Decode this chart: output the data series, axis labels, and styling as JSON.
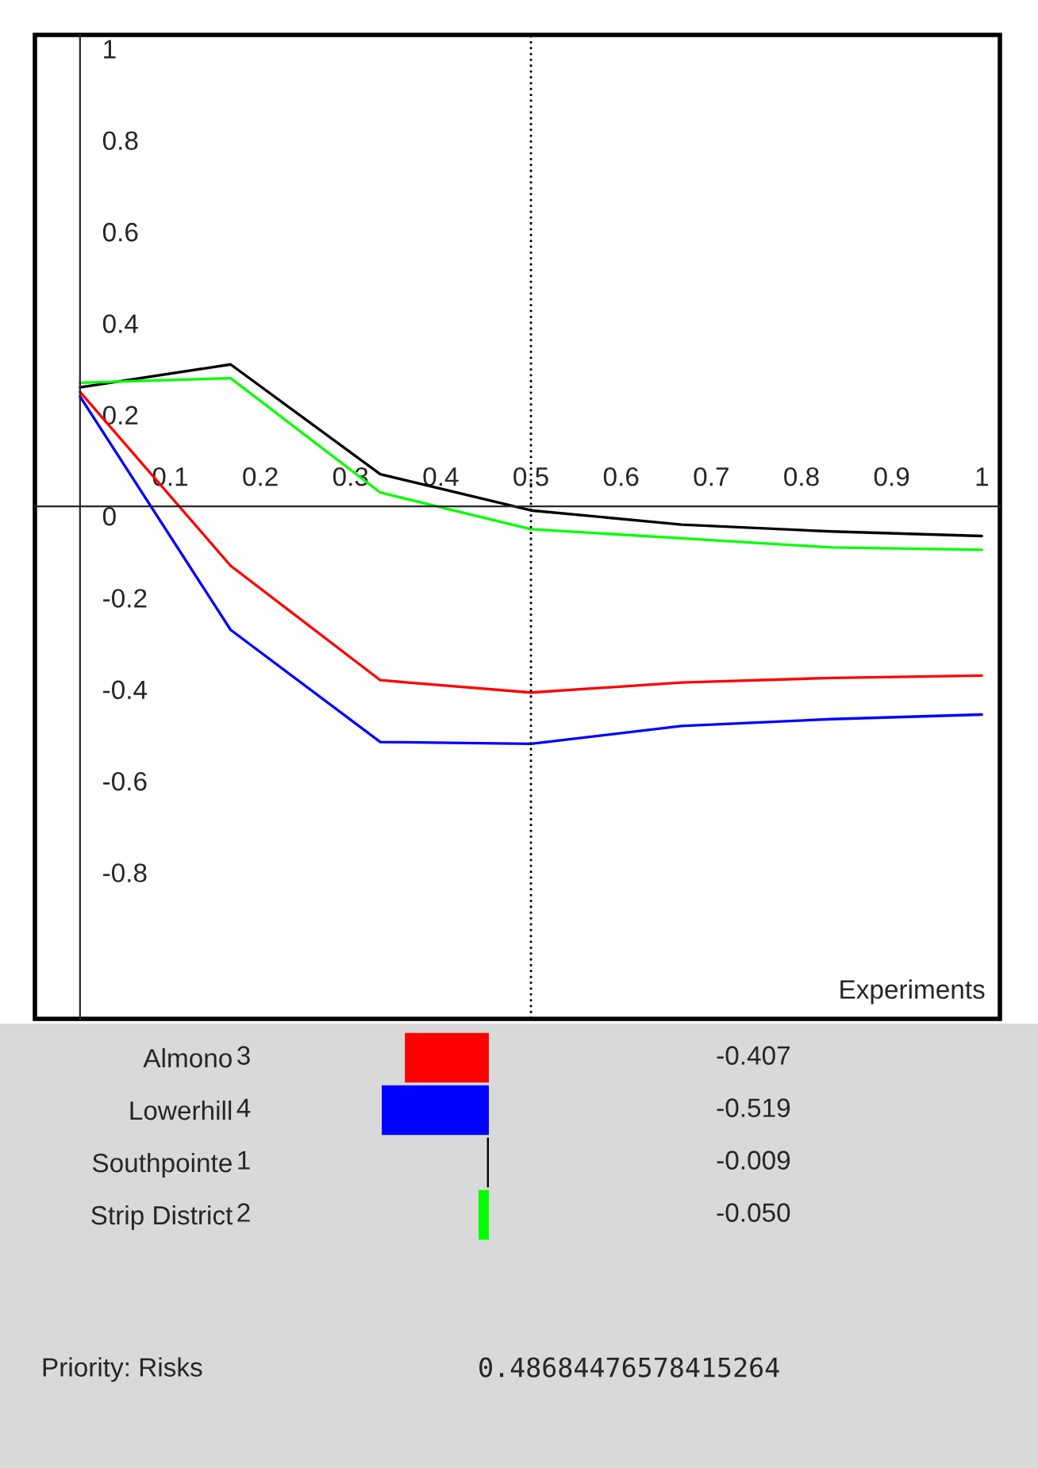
{
  "chart_data": [
    {
      "type": "line",
      "xlabel": "Experiments",
      "x": [
        0,
        0.167,
        0.333,
        0.5,
        0.667,
        0.833,
        1
      ],
      "series": [
        {
          "color": "#000000",
          "values": [
            0.26,
            0.31,
            0.07,
            -0.009,
            -0.04,
            -0.055,
            -0.065
          ]
        },
        {
          "color": "#00ff00",
          "values": [
            0.27,
            0.28,
            0.03,
            -0.05,
            -0.07,
            -0.09,
            -0.095
          ]
        },
        {
          "color": "#ff0000",
          "values": [
            0.25,
            -0.13,
            -0.38,
            -0.407,
            -0.385,
            -0.375,
            -0.37
          ]
        },
        {
          "color": "#0000ff",
          "values": [
            0.24,
            -0.27,
            -0.515,
            -0.519,
            -0.48,
            -0.465,
            -0.455
          ]
        }
      ],
      "xlim": [
        -0.05,
        1.02
      ],
      "ylim": [
        -1.12,
        1.03
      ],
      "xticks": [
        0.1,
        0.2,
        0.3,
        0.4,
        0.5,
        0.6,
        0.7,
        0.8,
        0.9,
        1
      ],
      "yticks": [
        -0.8,
        -0.6,
        -0.4,
        -0.2,
        0,
        0.2,
        0.4,
        0.6,
        0.8,
        1
      ],
      "ref_lines": [
        {
          "axis": "x",
          "value": 0.5,
          "color": "#000000",
          "line_style": "dotted"
        }
      ],
      "grid": false,
      "legend": false
    },
    {
      "type": "bar",
      "orientation": "horizontal",
      "categories": [
        "Almono",
        "Lowerhill",
        "Southpointe",
        "Strip District"
      ],
      "values": [
        -0.407,
        -0.519,
        -0.009,
        -0.05
      ],
      "colors": [
        "#ff0000",
        "#0000ff",
        "#000000",
        "#00ff00"
      ],
      "value_labels": [
        "-0.407",
        "-0.519",
        "-0.009",
        "-0.050"
      ],
      "annotations": [
        "3",
        "4",
        "1",
        "2",
        "Priority: Risks",
        "0.48684476578415264"
      ]
    }
  ]
}
